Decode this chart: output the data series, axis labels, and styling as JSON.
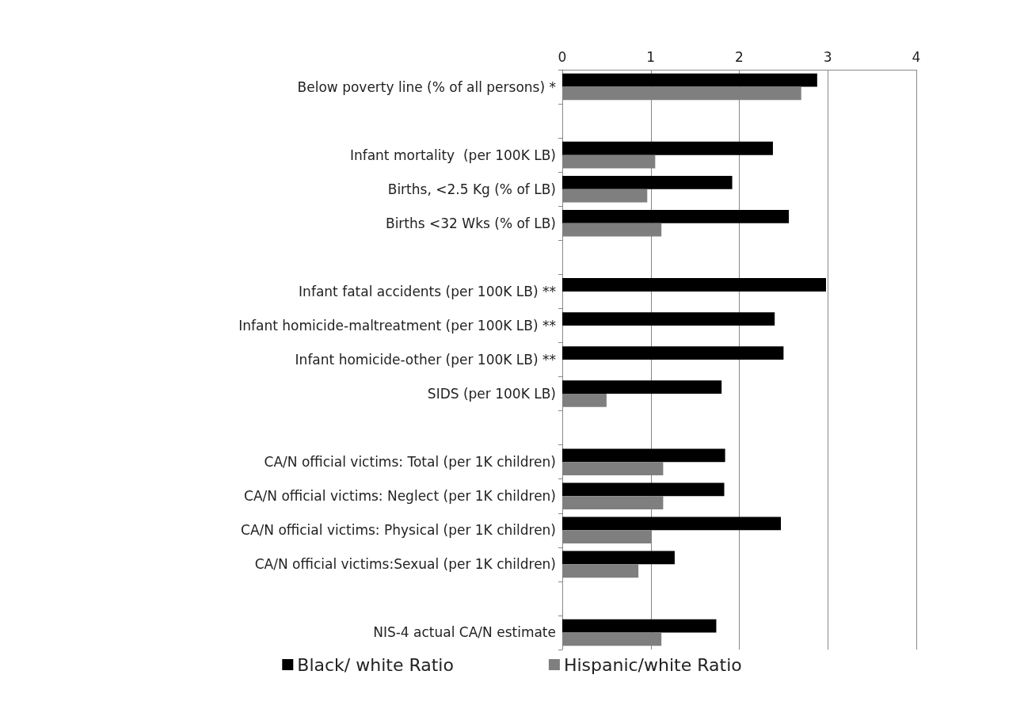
{
  "chart_data": {
    "type": "bar",
    "orientation": "horizontal",
    "categories": [
      "Below poverty line (% of all persons) *",
      null,
      "Infant mortality  (per 100K LB)",
      "Births, <2.5 Kg (% of LB)",
      "Births <32 Wks (% of LB)",
      null,
      "Infant fatal accidents (per 100K LB) **",
      "Infant homicide-maltreatment (per 100K LB) **",
      "Infant homicide-other (per 100K LB) **",
      "SIDS (per 100K LB)",
      null,
      "CA/N official victims: Total (per 1K children)",
      "CA/N official victims: Neglect (per 1K children)",
      "CA/N official victims: Physical (per 1K children)",
      "CA/N official victims:Sexual (per 1K children)",
      null,
      "NIS-4 actual CA/N estimate"
    ],
    "series": [
      {
        "name": "Black/ white Ratio",
        "color": "#000000",
        "values": [
          2.88,
          null,
          2.38,
          1.92,
          2.56,
          null,
          2.98,
          2.4,
          2.5,
          1.8,
          null,
          1.84,
          1.83,
          2.47,
          1.27,
          null,
          1.74
        ]
      },
      {
        "name": "Hispanic/white Ratio",
        "color": "#7f7f7f",
        "values": [
          2.7,
          null,
          1.05,
          0.96,
          1.12,
          null,
          null,
          null,
          null,
          0.5,
          null,
          1.14,
          1.14,
          1.01,
          0.86,
          null,
          1.12
        ]
      }
    ],
    "xlim": [
      0,
      4
    ],
    "xticks": [
      0,
      1,
      2,
      3,
      4
    ],
    "grid": "x",
    "legend": "bottom"
  }
}
